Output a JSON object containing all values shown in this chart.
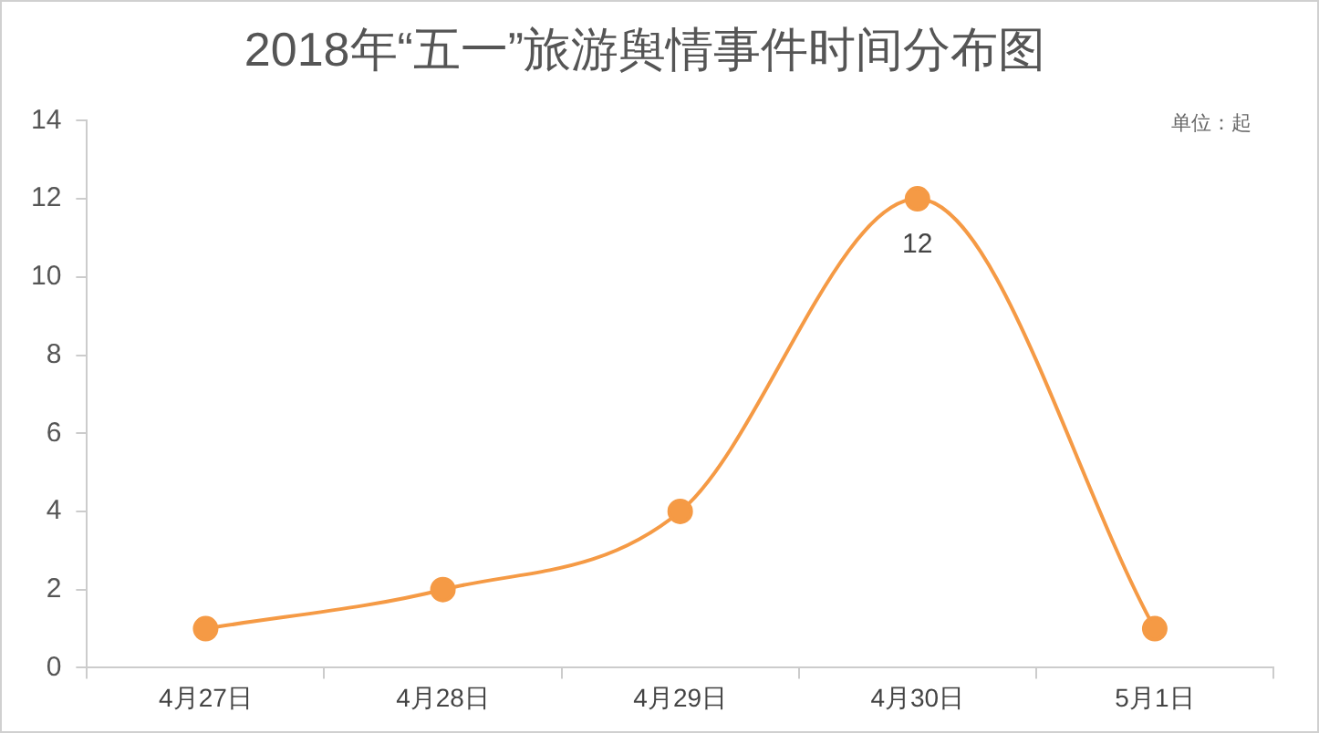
{
  "chart_data": {
    "type": "line",
    "title": "2018年“五一”旅游舆情事件时间分布图",
    "categories": [
      "4月27日",
      "4月28日",
      "4月29日",
      "4月30日",
      "5月1日"
    ],
    "series": [
      {
        "color": "#f59a45",
        "values": [
          1,
          2,
          4,
          12,
          1
        ],
        "value_labels": [
          null,
          null,
          null,
          "12",
          null
        ]
      }
    ],
    "ylim": [
      0,
      14
    ],
    "yticks": [
      0,
      2,
      4,
      6,
      8,
      10,
      12,
      14
    ],
    "grid": false,
    "legend": false,
    "marker": "circle",
    "line_style": "solid",
    "annotations": [
      "单位：起"
    ]
  }
}
